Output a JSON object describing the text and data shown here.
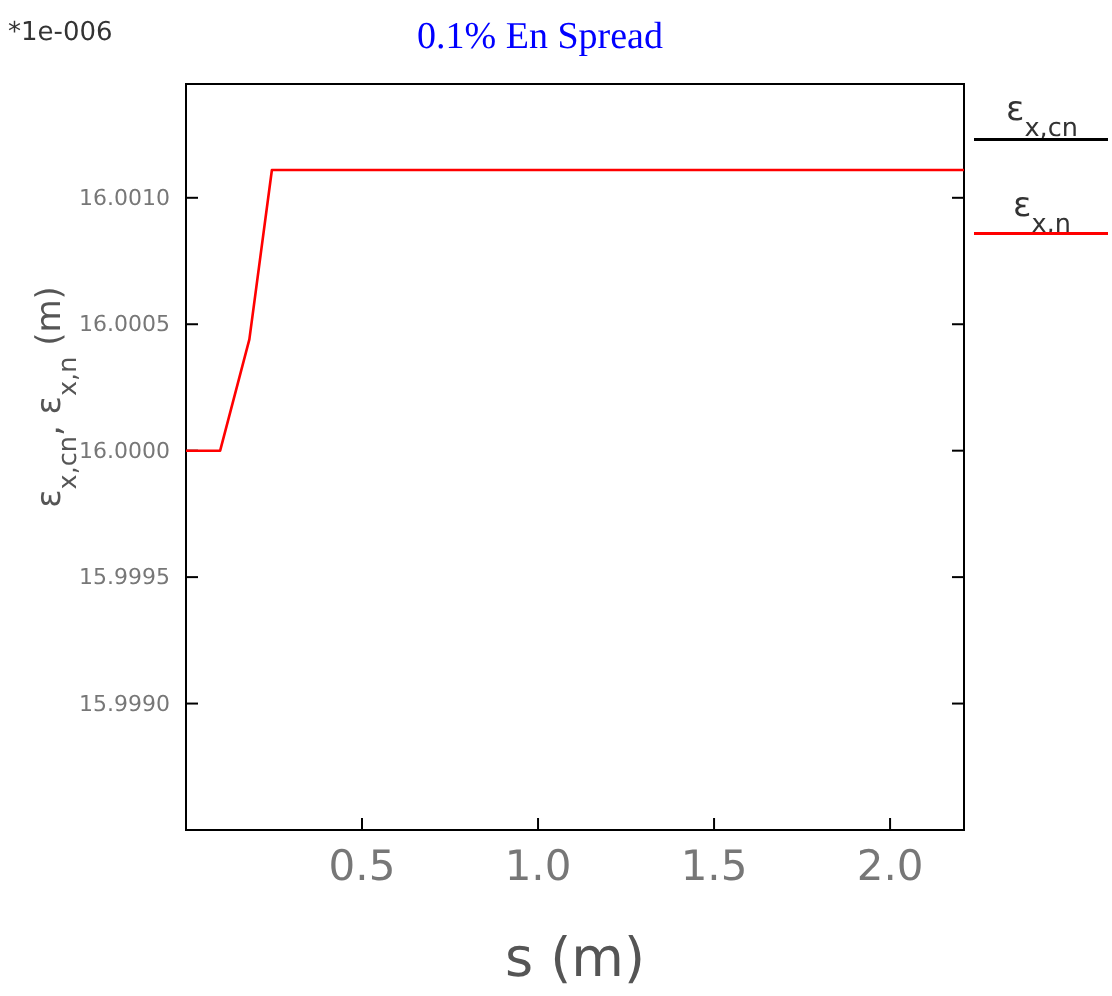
{
  "chart_data": {
    "type": "line",
    "title": "0.1%   En Spread",
    "xlabel": "s  (m)",
    "ylabel": "ε$_{x,cn}$,  ε$_{x,n}$  (m)",
    "annotations": [
      "*1e-006",
      "ε$_{x,cn}$"
    ],
    "x": [
      0,
      0.097,
      0.18,
      0.244,
      2.21
    ],
    "series": [
      {
        "name": "ε$_{x,n}$",
        "color": "#ff0000",
        "values": [
          16.0,
          16.0,
          16.00044,
          16.00111,
          16.00111
        ]
      }
    ],
    "xlim": [
      0,
      2.21
    ],
    "ylim": [
      15.9985,
      16.00145
    ],
    "xticks": [
      0.5,
      {
        "value": 1,
        "label": "1.0"
      },
      1.5,
      {
        "value": 2,
        "label": "2.0"
      }
    ],
    "yticks": [
      {
        "value": 15.999,
        "label": "15.9990"
      },
      15.9995,
      {
        "value": 16,
        "label": "16.0000"
      },
      16.0005,
      {
        "value": 16.001,
        "label": "16.0010"
      }
    ],
    "legend": "right",
    "grid": false,
    "marker": "none",
    "line_style": "solid"
  }
}
